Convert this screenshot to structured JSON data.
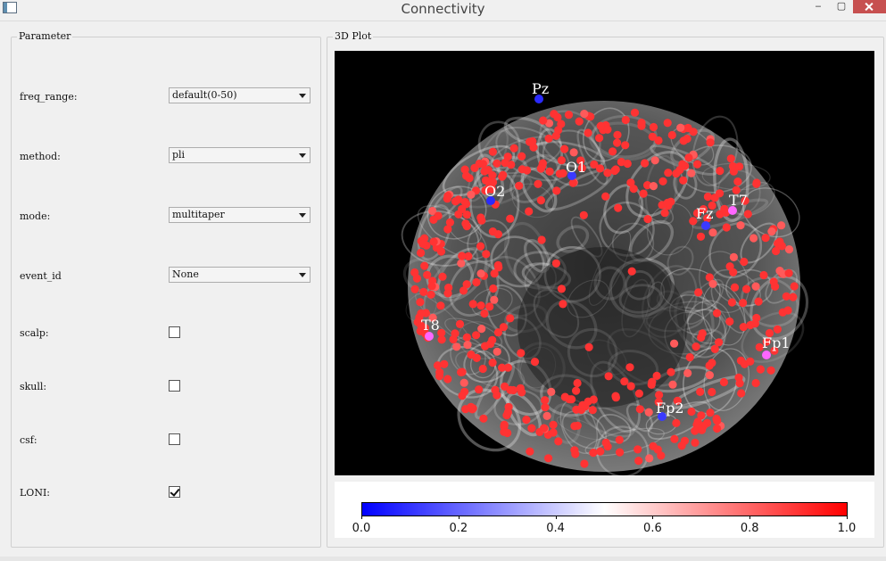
{
  "window": {
    "title": "Connectivity",
    "minimize": "‒",
    "maximize": "▢"
  },
  "parameter": {
    "title": "Parameter",
    "freq_range": {
      "label": "freq_range:",
      "value": "default(0-50)"
    },
    "method": {
      "label": "method:",
      "value": "pli"
    },
    "mode": {
      "label": "mode:",
      "value": "multitaper"
    },
    "event_id": {
      "label": "event_id",
      "value": "None"
    },
    "scalp": {
      "label": "scalp:",
      "checked": false
    },
    "skull": {
      "label": "skull:",
      "checked": false
    },
    "csf": {
      "label": "csf:",
      "checked": false
    },
    "loni": {
      "label": "LONI:",
      "checked": true
    }
  },
  "plot": {
    "title": "3D Plot",
    "electrodes": [
      {
        "name": "Pz",
        "color": "#2a2aff"
      },
      {
        "name": "O1",
        "color": "#3a3aff"
      },
      {
        "name": "O2",
        "color": "#2a2aff"
      },
      {
        "name": "Fz",
        "color": "#3a3aff"
      },
      {
        "name": "T7",
        "color": "#ff66ff"
      },
      {
        "name": "T8",
        "color": "#ff66ff"
      },
      {
        "name": "Fp1",
        "color": "#ff66ff"
      },
      {
        "name": "Fp2",
        "color": "#3a3aff"
      }
    ],
    "colorbar": {
      "min_color": "#0000ff",
      "mid_color": "#ffffff",
      "max_color": "#ff0000",
      "ticks": [
        "0.0",
        "0.2",
        "0.4",
        "0.6",
        "0.8",
        "1.0"
      ]
    }
  }
}
